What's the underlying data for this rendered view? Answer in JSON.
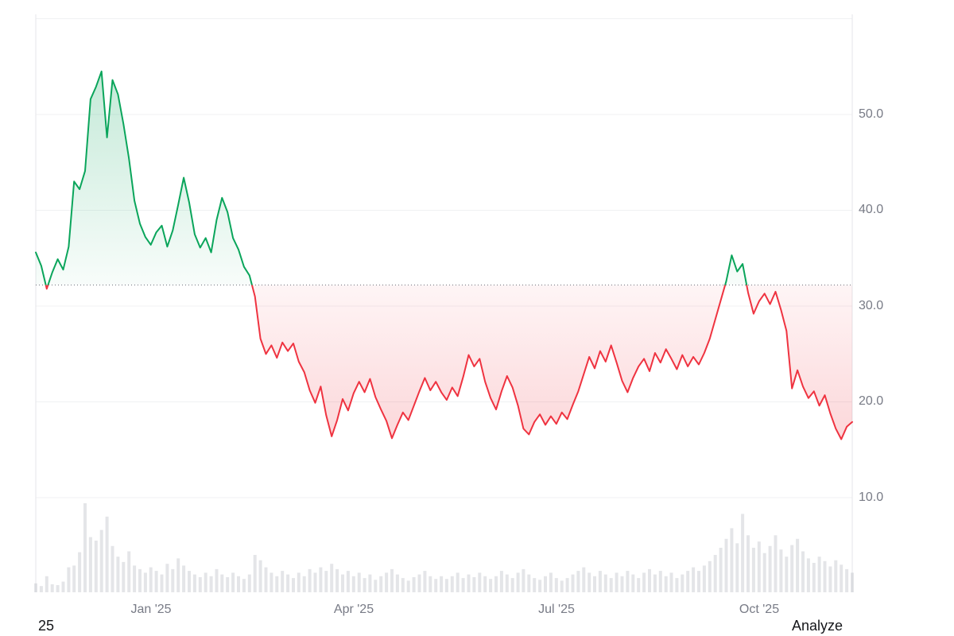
{
  "page": {
    "background": "#ffffff"
  },
  "footer": {
    "left_text": "25",
    "right_text": "Analyze"
  },
  "axes": {
    "y_ticks": [
      "50.0",
      "40.0",
      "30.0",
      "20.0",
      "10.0"
    ],
    "x_ticks": [
      "Jan '25",
      "Apr '25",
      "Jul '25",
      "Oct '25"
    ]
  },
  "chart_data": {
    "type": "line",
    "style": "baseline-area-with-volume",
    "title": "",
    "xlabel": "",
    "ylabel": "",
    "x_tick_labels": [
      "Jan '25",
      "Apr '25",
      "Jul '25",
      "Oct '25"
    ],
    "y_tick_values": [
      10,
      20,
      30,
      40,
      50
    ],
    "grid_values": [
      10,
      20,
      30,
      40,
      50,
      60
    ],
    "ylim": [
      0,
      60
    ],
    "baseline_value": 32.2,
    "baseline_style": "dotted",
    "up_color": "#0aa55b",
    "down_color": "#ef3340",
    "grid_color": "#f0f1f3",
    "axis_border_color": "#e4e6ea",
    "axis_text_color": "#787b86",
    "baseline_color": "#70737e",
    "volume_color": "rgba(158,163,173,0.28)",
    "x_range": "mid-Nov 2024 to mid-Nov 2025",
    "prices": [
      35.6,
      34.2,
      31.8,
      33.5,
      34.9,
      33.8,
      36.2,
      43.0,
      42.2,
      44.1,
      51.6,
      52.9,
      54.5,
      47.6,
      53.6,
      52.1,
      49.0,
      45.4,
      41.0,
      38.6,
      37.2,
      36.4,
      37.7,
      38.4,
      36.2,
      37.9,
      40.6,
      43.4,
      40.8,
      37.5,
      36.1,
      37.1,
      35.6,
      39.0,
      41.3,
      39.8,
      37.1,
      35.9,
      34.1,
      33.2,
      31.0,
      26.6,
      25.0,
      25.9,
      24.6,
      26.2,
      25.3,
      26.1,
      24.2,
      23.1,
      21.2,
      19.9,
      21.6,
      18.6,
      16.4,
      18.1,
      20.3,
      19.1,
      20.9,
      22.1,
      21.0,
      22.4,
      20.5,
      19.2,
      18.0,
      16.2,
      17.6,
      18.9,
      18.1,
      19.6,
      21.1,
      22.5,
      21.2,
      22.1,
      21.0,
      20.2,
      21.5,
      20.6,
      22.6,
      24.9,
      23.7,
      24.5,
      22.1,
      20.4,
      19.2,
      21.1,
      22.7,
      21.5,
      19.6,
      17.2,
      16.6,
      17.9,
      18.7,
      17.6,
      18.5,
      17.7,
      18.9,
      18.2,
      19.7,
      21.1,
      22.9,
      24.7,
      23.5,
      25.3,
      24.2,
      25.9,
      24.1,
      22.2,
      21.0,
      22.5,
      23.7,
      24.5,
      23.2,
      25.1,
      24.1,
      25.5,
      24.5,
      23.4,
      24.9,
      23.7,
      24.7,
      23.9,
      25.1,
      26.6,
      28.6,
      30.6,
      32.6,
      35.3,
      33.6,
      34.4,
      31.4,
      29.2,
      30.5,
      31.3,
      30.2,
      31.5,
      29.6,
      27.4,
      21.4,
      23.3,
      21.6,
      20.4,
      21.1,
      19.6,
      20.7,
      18.8,
      17.2,
      16.1,
      17.4,
      17.9
    ],
    "volumes": [
      10,
      7,
      18,
      9,
      8,
      12,
      28,
      30,
      45,
      100,
      62,
      58,
      70,
      85,
      52,
      40,
      34,
      46,
      30,
      26,
      22,
      28,
      24,
      20,
      32,
      26,
      38,
      30,
      24,
      20,
      17,
      22,
      18,
      26,
      20,
      17,
      22,
      18,
      15,
      20,
      42,
      36,
      28,
      22,
      18,
      24,
      20,
      16,
      22,
      18,
      26,
      22,
      28,
      24,
      32,
      26,
      20,
      24,
      18,
      22,
      16,
      20,
      14,
      18,
      22,
      26,
      20,
      16,
      13,
      17,
      20,
      24,
      18,
      15,
      18,
      15,
      18,
      22,
      16,
      20,
      17,
      22,
      18,
      15,
      18,
      24,
      20,
      16,
      22,
      26,
      20,
      16,
      14,
      18,
      22,
      16,
      13,
      16,
      20,
      24,
      28,
      22,
      18,
      24,
      20,
      16,
      22,
      18,
      24,
      20,
      16,
      22,
      26,
      20,
      24,
      18,
      22,
      16,
      20,
      24,
      28,
      24,
      30,
      35,
      42,
      50,
      60,
      72,
      55,
      88,
      64,
      50,
      57,
      44,
      52,
      64,
      48,
      40,
      53,
      60,
      46,
      38,
      33,
      40,
      35,
      29,
      36,
      31,
      26,
      22
    ]
  }
}
